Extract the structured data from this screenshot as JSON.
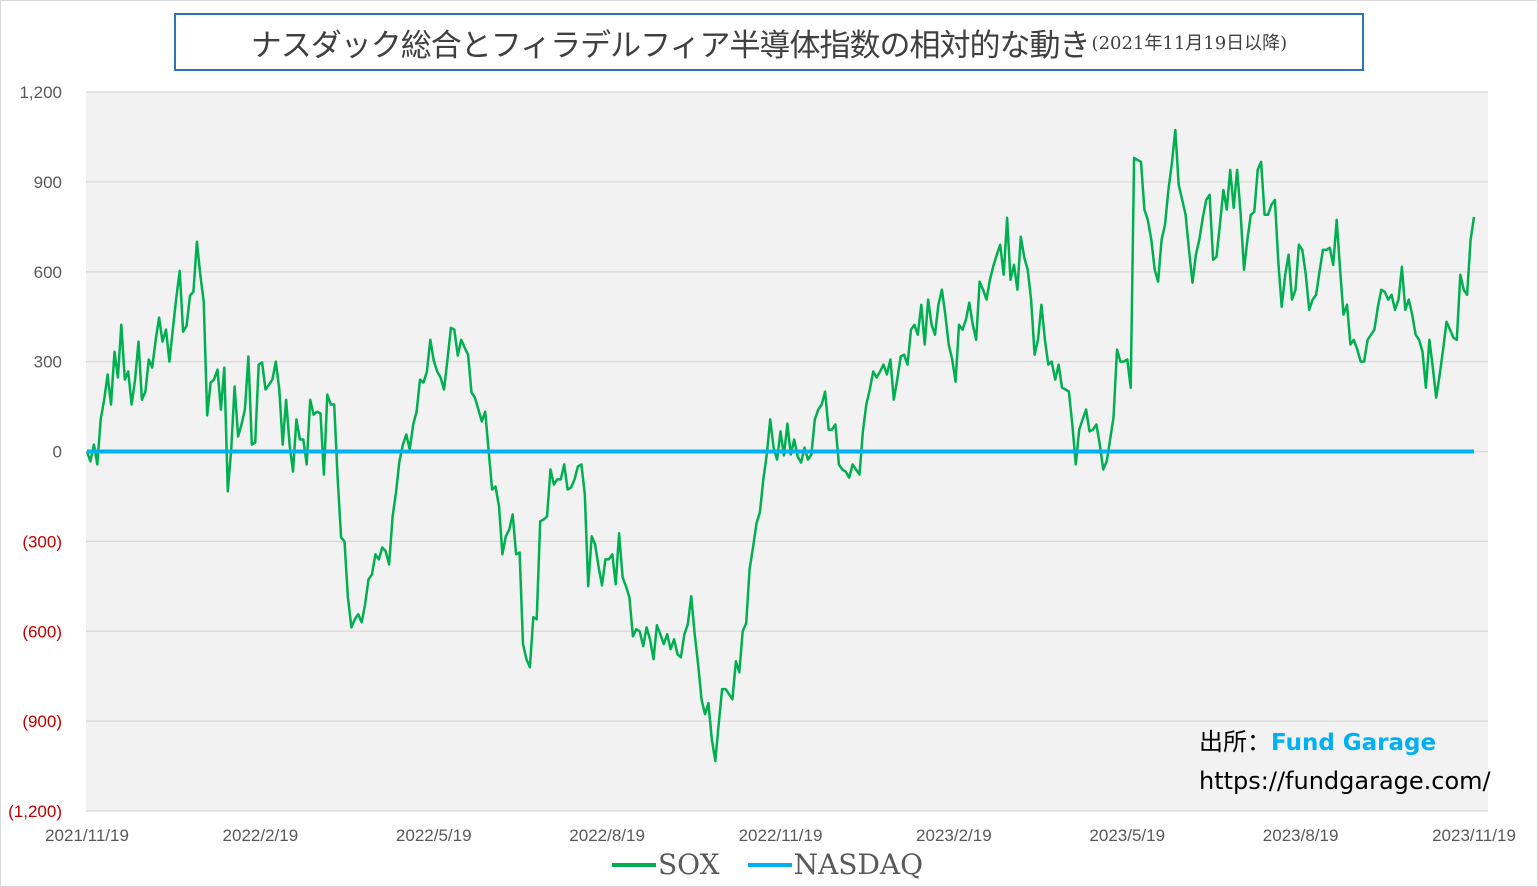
{
  "title": {
    "main": "ナスダック総合とフィラデルフィア半導体指数の相対的な動き",
    "sub": "(2021年11月19日以降)"
  },
  "source": {
    "label": "出所：",
    "brand": "Fund Garage",
    "url": "https://fundgarage.com/"
  },
  "colors": {
    "sox": "#00b050",
    "nasdaq": "#00b0f0",
    "plot_bg": "#f2f2f2",
    "grid": "#d9d9d9",
    "negative_tick": "#c00000"
  },
  "chart_data": {
    "type": "line",
    "title": "ナスダック総合とフィラデルフィア半導体指数の相対的な動き(2021年11月19日以降)",
    "xlabel": "",
    "ylabel": "",
    "x_range": [
      "2021/11/19",
      "2023/11/19"
    ],
    "x_ticks": [
      "2021/11/19",
      "2022/2/19",
      "2022/5/19",
      "2022/8/19",
      "2022/11/19",
      "2023/2/19",
      "2023/5/19",
      "2023/8/19",
      "2023/11/19"
    ],
    "y_ticks": [
      "1,200",
      "900",
      "600",
      "300",
      "0",
      "(300)",
      "(600)",
      "(900)",
      "(1,200)"
    ],
    "y_tick_values": [
      1200,
      900,
      600,
      300,
      0,
      -300,
      -600,
      -900,
      -1200
    ],
    "ylim": [
      -1200,
      1200
    ],
    "grid": true,
    "legend_position": "bottom",
    "series": [
      {
        "name": "SOX",
        "values": [
          0,
          -33,
          23,
          -43,
          107,
          173,
          257,
          157,
          333,
          247,
          423,
          240,
          267,
          157,
          240,
          367,
          173,
          200,
          307,
          280,
          373,
          447,
          367,
          407,
          300,
          407,
          513,
          603,
          400,
          420,
          520,
          533,
          700,
          590,
          500,
          120,
          230,
          240,
          273,
          140,
          280,
          -133,
          7,
          217,
          50,
          90,
          140,
          317,
          23,
          30,
          290,
          297,
          207,
          223,
          240,
          300,
          207,
          23,
          173,
          23,
          -67,
          107,
          40,
          40,
          -43,
          173,
          123,
          133,
          127,
          -77,
          190,
          157,
          157,
          -87,
          -287,
          -300,
          -487,
          -587,
          -560,
          -543,
          -570,
          -510,
          -427,
          -410,
          -343,
          -360,
          -320,
          -333,
          -377,
          -217,
          -137,
          -33,
          23,
          57,
          7,
          90,
          133,
          240,
          230,
          267,
          373,
          303,
          267,
          247,
          207,
          307,
          413,
          407,
          320,
          373,
          347,
          323,
          197,
          180,
          140,
          100,
          133,
          0,
          -127,
          -117,
          -183,
          -343,
          -283,
          -260,
          -210,
          -343,
          -337,
          -643,
          -693,
          -720,
          -553,
          -560,
          -233,
          -227,
          -217,
          -60,
          -110,
          -93,
          -93,
          -43,
          -127,
          -120,
          -93,
          -50,
          -43,
          -143,
          -450,
          -283,
          -310,
          -383,
          -447,
          -360,
          -360,
          -343,
          -443,
          -273,
          -420,
          -450,
          -487,
          -617,
          -593,
          -600,
          -650,
          -587,
          -627,
          -693,
          -580,
          -610,
          -643,
          -610,
          -660,
          -627,
          -677,
          -687,
          -610,
          -577,
          -483,
          -610,
          -710,
          -827,
          -877,
          -840,
          -960,
          -1033,
          -910,
          -793,
          -793,
          -810,
          -827,
          -700,
          -737,
          -600,
          -573,
          -393,
          -320,
          -240,
          -203,
          -93,
          -10,
          107,
          13,
          -27,
          67,
          -13,
          93,
          -10,
          40,
          -17,
          -37,
          13,
          -27,
          -10,
          107,
          140,
          157,
          200,
          73,
          73,
          90,
          -43,
          -60,
          -67,
          -87,
          -43,
          -60,
          -77,
          67,
          157,
          207,
          267,
          247,
          267,
          290,
          257,
          307,
          173,
          240,
          317,
          323,
          290,
          407,
          423,
          390,
          490,
          357,
          507,
          423,
          390,
          490,
          540,
          457,
          357,
          307,
          233,
          423,
          407,
          440,
          497,
          423,
          373,
          567,
          540,
          507,
          573,
          620,
          657,
          690,
          590,
          780,
          573,
          623,
          540,
          717,
          647,
          607,
          507,
          323,
          373,
          490,
          373,
          290,
          300,
          240,
          290,
          213,
          207,
          200,
          90,
          -43,
          73,
          107,
          140,
          67,
          73,
          90,
          23,
          -60,
          -33,
          40,
          113,
          340,
          300,
          300,
          307,
          213,
          980,
          973,
          967,
          807,
          773,
          707,
          607,
          567,
          707,
          757,
          873,
          963,
          1073,
          890,
          840,
          790,
          673,
          563,
          657,
          707,
          780,
          840,
          857,
          640,
          650,
          757,
          873,
          807,
          940,
          813,
          940,
          800,
          607,
          707,
          790,
          800,
          940,
          967,
          790,
          790,
          823,
          840,
          633,
          483,
          590,
          657,
          507,
          540,
          690,
          673,
          590,
          473,
          507,
          523,
          600,
          673,
          673,
          680,
          623,
          773,
          607,
          457,
          490,
          357,
          373,
          340,
          300,
          300,
          373,
          390,
          407,
          483,
          540,
          533,
          507,
          523,
          473,
          507,
          617,
          473,
          507,
          457,
          390,
          373,
          333,
          213,
          373,
          280,
          180,
          257,
          340,
          433,
          407,
          380,
          373,
          590,
          540,
          523,
          707,
          783
        ]
      },
      {
        "name": "NASDAQ",
        "values": [
          0,
          0
        ]
      }
    ]
  }
}
